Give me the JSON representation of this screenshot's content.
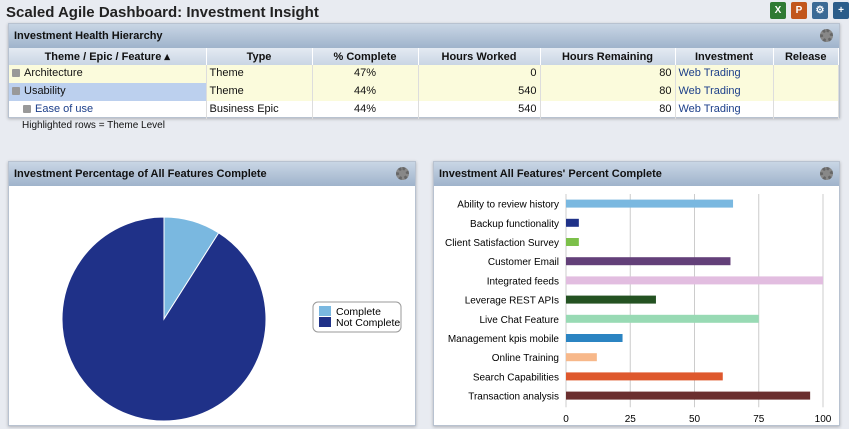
{
  "title": "Scaled Agile Dashboard: Investment Insight",
  "toolbar": {
    "excel": "X",
    "ppt": "P",
    "icons": [
      "excel-icon",
      "powerpoint-icon",
      "settings-icon",
      "add-icon"
    ]
  },
  "hierarchy": {
    "title": "Investment Health Hierarchy",
    "columns": [
      "Theme / Epic / Feature ▴",
      "Type",
      "% Complete",
      "Hours Worked",
      "Hours Remaining",
      "Investment",
      "Release"
    ],
    "rows": [
      {
        "name": "Architecture",
        "type": "Theme",
        "pct": "47%",
        "worked": "0",
        "remaining": "80",
        "investment": "Web Trading",
        "release": ""
      },
      {
        "name": "Usability",
        "type": "Theme",
        "pct": "44%",
        "worked": "540",
        "remaining": "80",
        "investment": "Web Trading",
        "release": ""
      },
      {
        "name": "Ease of use",
        "type": "Business Epic",
        "pct": "44%",
        "worked": "540",
        "remaining": "80",
        "investment": "Web Trading",
        "release": ""
      }
    ],
    "note": "Highlighted rows = Theme Level"
  },
  "chart_data": [
    {
      "type": "pie",
      "title": "Investment Percentage of All Features Complete",
      "categories": [
        "Complete",
        "Not Complete"
      ],
      "values": [
        9,
        91
      ],
      "colors": [
        "#7ab8e0",
        "#1f3188"
      ],
      "legend": "right"
    },
    {
      "type": "bar",
      "orientation": "horizontal",
      "title": "Investment All Features' Percent Complete",
      "categories": [
        "Ability to review history",
        "Backup functionality",
        "Client Satisfaction Survey",
        "Customer Email",
        "Integrated feeds",
        "Leverage REST APIs",
        "Live Chat Feature",
        "Management kpis mobile",
        "Online Training",
        "Search Capabilities",
        "Transaction analysis"
      ],
      "values": [
        65,
        5,
        5,
        64,
        100,
        35,
        75,
        22,
        12,
        61,
        95
      ],
      "colors": [
        "#7ab8e0",
        "#1f3188",
        "#7cc04a",
        "#634079",
        "#e2bde0",
        "#245222",
        "#98dab4",
        "#2b84c2",
        "#f7b88a",
        "#de582d",
        "#6b2f2f"
      ],
      "xlim": [
        0,
        100
      ],
      "xticks": [
        "0",
        "25",
        "50",
        "75",
        "100"
      ],
      "grid": true
    }
  ]
}
